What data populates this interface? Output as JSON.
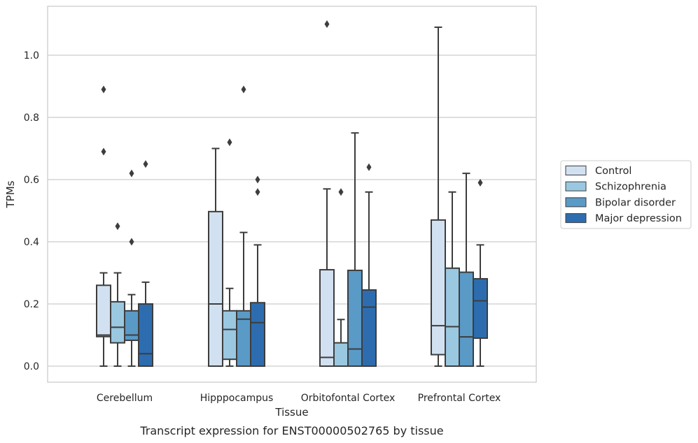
{
  "chart_data": {
    "type": "boxplot",
    "caption": "Transcript expression for ENST00000502765 by tissue",
    "xlabel": "Tissue",
    "ylabel": "TPMs",
    "ylim": [
      -0.053,
      1.165
    ],
    "yticks": [
      0.0,
      0.2,
      0.4,
      0.6,
      0.8,
      1.0
    ],
    "ytick_labels": [
      "0.0",
      "0.2",
      "0.4",
      "0.6",
      "0.8",
      "1.0"
    ],
    "grid": "horizontal",
    "legend_position": "right",
    "categories": [
      "Cerebellum",
      "Hipppocampus",
      "Orbitofontal Cortex",
      "Prefrontal Cortex"
    ],
    "series": [
      {
        "name": "Control",
        "color": "#d1e1f1",
        "boxes": [
          {
            "whislo": 0.0,
            "q1": 0.095,
            "med": 0.1,
            "q3": 0.26,
            "whishi": 0.3,
            "fliers": [
              0.69,
              0.89
            ]
          },
          {
            "whislo": 0.0,
            "q1": 0.0,
            "med": 0.2,
            "q3": 0.497,
            "whishi": 0.7,
            "fliers": []
          },
          {
            "whislo": 0.0,
            "q1": 0.0,
            "med": 0.028,
            "q3": 0.31,
            "whishi": 0.57,
            "fliers": [
              1.1
            ]
          },
          {
            "whislo": 0.0,
            "q1": 0.037,
            "med": 0.13,
            "q3": 0.47,
            "whishi": 1.09,
            "fliers": []
          }
        ]
      },
      {
        "name": "Schizophrenia",
        "color": "#9ac8e0",
        "boxes": [
          {
            "whislo": 0.0,
            "q1": 0.075,
            "med": 0.125,
            "q3": 0.207,
            "whishi": 0.3,
            "fliers": [
              0.45
            ]
          },
          {
            "whislo": 0.0,
            "q1": 0.022,
            "med": 0.118,
            "q3": 0.178,
            "whishi": 0.25,
            "fliers": [
              0.72
            ]
          },
          {
            "whislo": 0.0,
            "q1": 0.0,
            "med": 0.0,
            "q3": 0.075,
            "whishi": 0.15,
            "fliers": [
              0.56
            ]
          },
          {
            "whislo": 0.0,
            "q1": 0.0,
            "med": 0.127,
            "q3": 0.315,
            "whishi": 0.56,
            "fliers": []
          }
        ]
      },
      {
        "name": "Bipolar disorder",
        "color": "#5a9ac7",
        "boxes": [
          {
            "whislo": 0.0,
            "q1": 0.083,
            "med": 0.1,
            "q3": 0.178,
            "whishi": 0.23,
            "fliers": [
              0.4,
              0.62
            ]
          },
          {
            "whislo": 0.0,
            "q1": 0.0,
            "med": 0.151,
            "q3": 0.178,
            "whishi": 0.43,
            "fliers": [
              0.89
            ]
          },
          {
            "whislo": 0.0,
            "q1": 0.0,
            "med": 0.055,
            "q3": 0.308,
            "whishi": 0.75,
            "fliers": []
          },
          {
            "whislo": 0.0,
            "q1": 0.0,
            "med": 0.094,
            "q3": 0.302,
            "whishi": 0.62,
            "fliers": []
          }
        ]
      },
      {
        "name": "Major depression",
        "color": "#2d6daf",
        "boxes": [
          {
            "whislo": 0.0,
            "q1": 0.0,
            "med": 0.04,
            "q3": 0.2,
            "whishi": 0.27,
            "fliers": [
              0.65
            ]
          },
          {
            "whislo": 0.0,
            "q1": 0.0,
            "med": 0.14,
            "q3": 0.204,
            "whishi": 0.39,
            "fliers": [
              0.56,
              0.6
            ]
          },
          {
            "whislo": 0.0,
            "q1": 0.0,
            "med": 0.19,
            "q3": 0.245,
            "whishi": 0.56,
            "fliers": [
              0.64
            ]
          },
          {
            "whislo": 0.0,
            "q1": 0.09,
            "med": 0.21,
            "q3": 0.281,
            "whishi": 0.39,
            "fliers": [
              0.59
            ]
          }
        ]
      }
    ]
  }
}
